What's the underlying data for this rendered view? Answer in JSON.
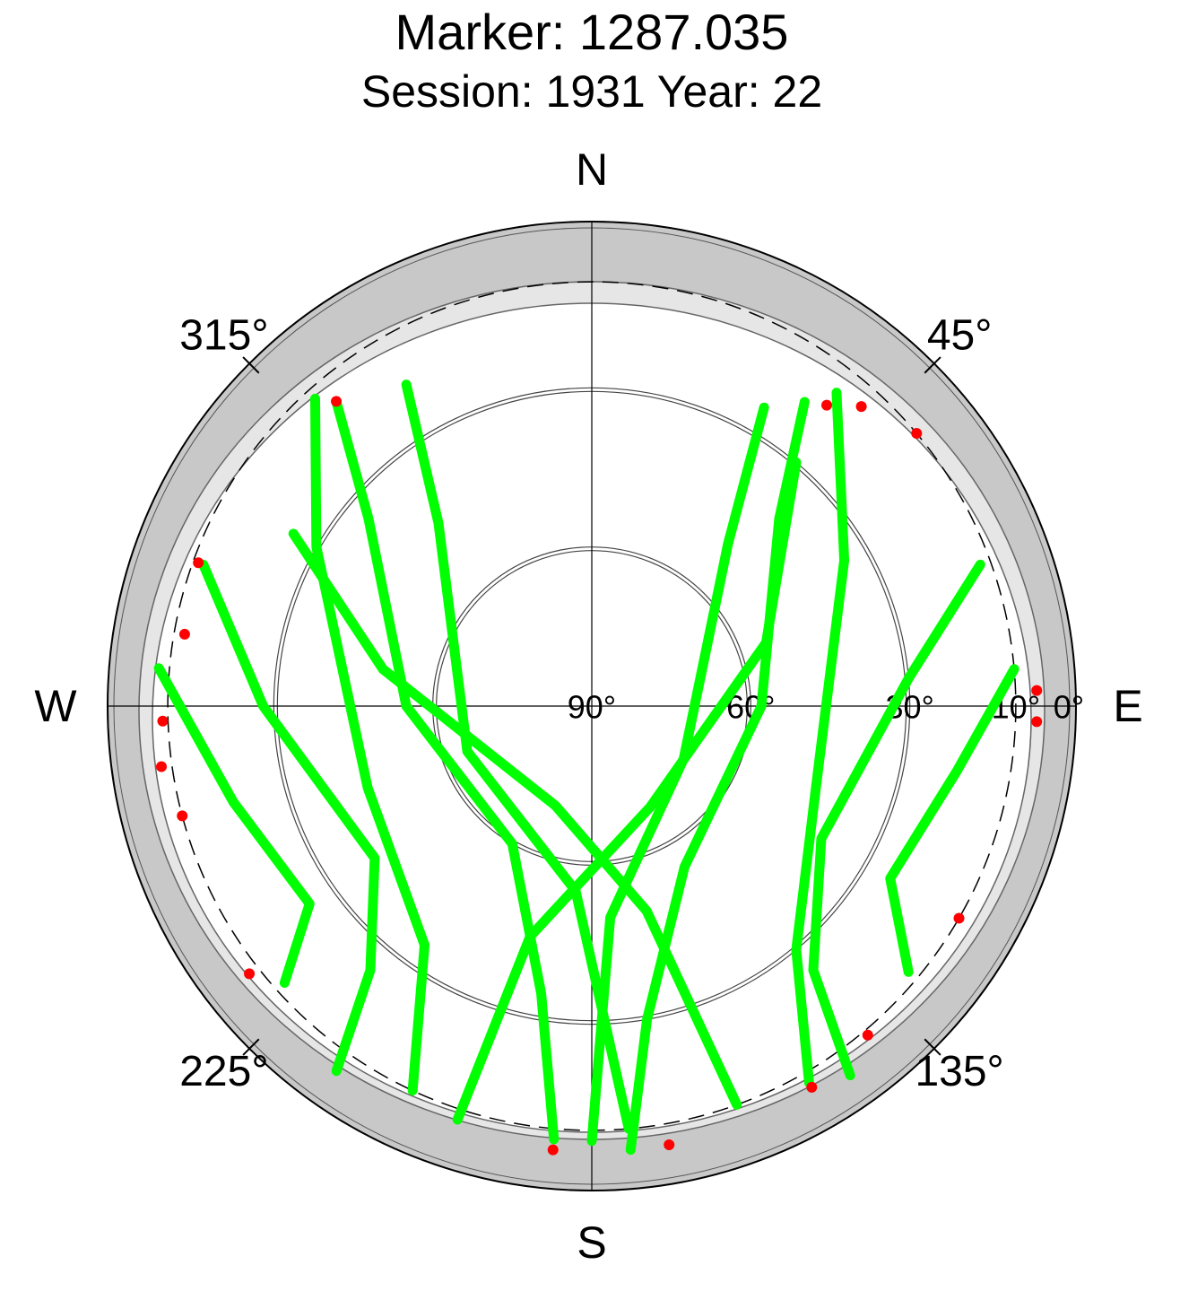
{
  "chart_data": {
    "type": "skyplot",
    "title": "Marker: 1287.035",
    "subtitle": "Session: 1931 Year: 22",
    "directions": [
      {
        "value": 0,
        "label": "N"
      },
      {
        "value": 90,
        "label": "E"
      },
      {
        "value": 180,
        "label": "S"
      },
      {
        "value": 270,
        "label": "W"
      }
    ],
    "azimuth_ticks": [
      {
        "value": 45,
        "label": "45°"
      },
      {
        "value": 135,
        "label": "135°"
      },
      {
        "value": 225,
        "label": "225°"
      },
      {
        "value": 315,
        "label": "315°"
      }
    ],
    "ylim": [
      0,
      90
    ],
    "yticks": [
      {
        "value": 0,
        "label": "0°"
      },
      {
        "value": 10,
        "label": "10°"
      },
      {
        "value": 30,
        "label": "30°"
      },
      {
        "value": 60,
        "label": "60°"
      },
      {
        "value": 90,
        "label": "90°"
      }
    ],
    "elevation_cutoff": 10,
    "series": [
      {
        "color": "#00ff00",
        "azimuth": [
          320,
          310,
          270,
          210,
          190,
          185
        ],
        "elevation": [
          15,
          35,
          55,
          60,
          35,
          8
        ]
      },
      {
        "color": "#00ff00",
        "azimuth": [
          35,
          45,
          90,
          150,
          170,
          175
        ],
        "elevation": [
          20,
          40,
          58,
          55,
          30,
          6
        ]
      },
      {
        "color": "#00ff00",
        "azimuth": [
          318,
          300,
          250,
          215,
          205
        ],
        "elevation": [
          12,
          30,
          45,
          35,
          10
        ]
      },
      {
        "color": "#00ff00",
        "azimuth": [
          38,
          60,
          110,
          140,
          150
        ],
        "elevation": [
          15,
          35,
          45,
          30,
          8
        ]
      },
      {
        "color": "#00ff00",
        "azimuth": [
          290,
          270,
          235,
          220,
          215
        ],
        "elevation": [
          12,
          28,
          40,
          25,
          6
        ]
      },
      {
        "color": "#00ff00",
        "azimuth": [
          70,
          85,
          120,
          140,
          145
        ],
        "elevation": [
          12,
          30,
          40,
          25,
          5
        ]
      },
      {
        "color": "#00ff00",
        "azimuth": [
          300,
          280,
          200,
          165,
          160
        ],
        "elevation": [
          25,
          50,
          70,
          50,
          10
        ]
      },
      {
        "color": "#00ff00",
        "azimuth": [
          40,
          70,
          150,
          195,
          198
        ],
        "elevation": [
          30,
          55,
          68,
          45,
          8
        ]
      },
      {
        "color": "#00ff00",
        "azimuth": [
          275,
          255,
          235,
          228
        ],
        "elevation": [
          8,
          20,
          25,
          12
        ]
      },
      {
        "color": "#00ff00",
        "azimuth": [
          85,
          100,
          120,
          130
        ],
        "elevation": [
          10,
          20,
          25,
          12
        ]
      },
      {
        "color": "#00ff00",
        "azimuth": [
          330,
          320,
          250,
          185,
          175
        ],
        "elevation": [
          20,
          45,
          65,
          55,
          10
        ]
      },
      {
        "color": "#00ff00",
        "azimuth": [
          30,
          40,
          120,
          175,
          180
        ],
        "elevation": [
          25,
          50,
          70,
          50,
          8
        ]
      }
    ],
    "low_points": {
      "color": "#ff0000",
      "azimuth": [
        38,
        42,
        50,
        255,
        262,
        268,
        280,
        290,
        320,
        232,
        185,
        170,
        150,
        140,
        120,
        88,
        92
      ],
      "elevation": [
        18,
        14,
        10,
        10,
        8,
        9,
        12,
        11,
        15,
        8,
        6,
        6,
        7,
        9,
        10,
        6,
        6
      ]
    }
  }
}
